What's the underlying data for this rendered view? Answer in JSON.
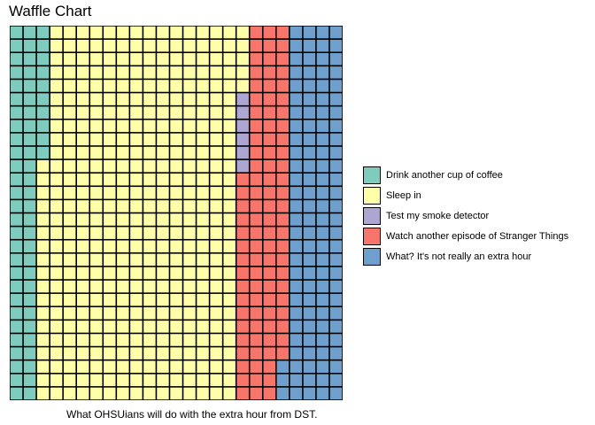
{
  "chart_data": {
    "type": "waffle",
    "title": "Waffle Chart",
    "caption": "What OHSUians will do with the extra hour from DST.",
    "grid": {
      "columns": 25,
      "rows": 28,
      "fill_order": "column-major-top-to-bottom"
    },
    "series": [
      {
        "name": "Drink another cup of coffee",
        "value": 66,
        "color": "#7fcbbd"
      },
      {
        "name": "Sleep in",
        "value": 415,
        "color": "#ffffaa"
      },
      {
        "name": "Test my smoke detector",
        "value": 6,
        "color": "#ada6d2"
      },
      {
        "name": "Watch another episode of Stranger Things",
        "value": 98,
        "color": "#f7756b"
      },
      {
        "name": "What? It's not really an extra hour",
        "value": 115,
        "color": "#6f9fcc"
      }
    ],
    "legend_position": "right"
  }
}
